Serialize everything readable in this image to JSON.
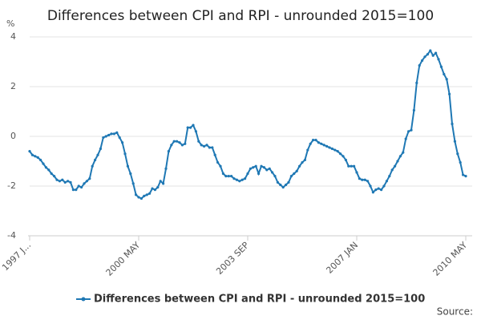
{
  "chart_data": {
    "type": "line",
    "title": "Differences between CPI and RPI - unrounded 2015=100",
    "y_label": "%",
    "source": "Source:",
    "categories": [
      "1997 J...",
      null,
      null,
      null,
      null,
      null,
      null,
      null,
      null,
      null,
      null,
      null,
      null,
      null,
      null,
      null,
      null,
      null,
      null,
      null,
      null,
      null,
      null,
      null,
      null,
      null,
      null,
      null,
      null,
      null,
      null,
      null,
      null,
      null,
      null,
      null,
      null,
      null,
      null,
      null,
      "2000 MAY",
      null,
      null,
      null,
      null,
      null,
      null,
      null,
      null,
      null,
      null,
      null,
      null,
      null,
      null,
      null,
      null,
      null,
      null,
      null,
      null,
      null,
      null,
      null,
      null,
      null,
      null,
      null,
      null,
      null,
      null,
      null,
      null,
      null,
      null,
      null,
      null,
      null,
      null,
      null,
      "2003 SEP",
      null,
      null,
      null,
      null,
      null,
      null,
      null,
      null,
      null,
      null,
      null,
      null,
      null,
      null,
      null,
      null,
      null,
      null,
      null,
      null,
      null,
      null,
      null,
      null,
      null,
      null,
      null,
      null,
      null,
      null,
      null,
      null,
      null,
      null,
      null,
      null,
      null,
      null,
      null,
      "2007 JAN",
      null,
      null,
      null,
      null,
      null,
      null,
      null,
      null,
      null,
      null,
      null,
      null,
      null,
      null,
      null,
      null,
      null,
      null,
      null,
      null,
      null,
      null,
      null,
      null,
      null,
      null,
      null,
      null,
      null,
      null,
      null,
      null,
      null,
      null,
      null,
      null,
      null,
      null,
      null,
      "2010 MAY"
    ],
    "series": [
      {
        "name": "Differences between CPI and RPI - unrounded 2015=100",
        "color": "#1f78b4",
        "values": [
          -0.6,
          -0.75,
          -0.8,
          -0.85,
          -0.95,
          -1.1,
          -1.25,
          -1.35,
          -1.5,
          -1.6,
          -1.75,
          -1.8,
          -1.75,
          -1.85,
          -1.8,
          -1.85,
          -2.15,
          -2.15,
          -2.0,
          -2.05,
          -1.9,
          -1.8,
          -1.7,
          -1.2,
          -0.95,
          -0.75,
          -0.5,
          -0.05,
          0.0,
          0.05,
          0.1,
          0.1,
          0.15,
          -0.05,
          -0.25,
          -0.7,
          -1.2,
          -1.5,
          -1.9,
          -2.35,
          -2.45,
          -2.5,
          -2.4,
          -2.35,
          -2.3,
          -2.1,
          -2.15,
          -2.05,
          -1.8,
          -1.9,
          -1.3,
          -0.6,
          -0.35,
          -0.2,
          -0.2,
          -0.25,
          -0.35,
          -0.3,
          0.35,
          0.35,
          0.45,
          0.2,
          -0.2,
          -0.35,
          -0.4,
          -0.35,
          -0.45,
          -0.45,
          -0.75,
          -1.05,
          -1.2,
          -1.5,
          -1.6,
          -1.6,
          -1.6,
          -1.7,
          -1.75,
          -1.8,
          -1.75,
          -1.7,
          -1.5,
          -1.3,
          -1.25,
          -1.2,
          -1.5,
          -1.2,
          -1.25,
          -1.35,
          -1.3,
          -1.45,
          -1.6,
          -1.85,
          -1.95,
          -2.05,
          -1.95,
          -1.85,
          -1.6,
          -1.5,
          -1.4,
          -1.2,
          -1.05,
          -0.95,
          -0.55,
          -0.3,
          -0.15,
          -0.15,
          -0.25,
          -0.3,
          -0.35,
          -0.4,
          -0.45,
          -0.5,
          -0.55,
          -0.6,
          -0.7,
          -0.8,
          -0.95,
          -1.2,
          -1.2,
          -1.2,
          -1.45,
          -1.7,
          -1.75,
          -1.75,
          -1.8,
          -2.0,
          -2.25,
          -2.15,
          -2.1,
          -2.15,
          -2.0,
          -1.8,
          -1.6,
          -1.35,
          -1.2,
          -1.0,
          -0.8,
          -0.65,
          -0.1,
          0.2,
          0.25,
          1.05,
          2.15,
          2.85,
          3.05,
          3.2,
          3.3,
          3.45,
          3.25,
          3.35,
          3.1,
          2.8,
          2.5,
          2.3,
          1.7,
          0.5,
          -0.2,
          -0.7,
          -1.05,
          -1.55,
          -1.6
        ]
      }
    ],
    "ylim": [
      -4,
      4
    ],
    "yticks": [
      -4,
      -2,
      0,
      2,
      4
    ],
    "grid": true
  }
}
